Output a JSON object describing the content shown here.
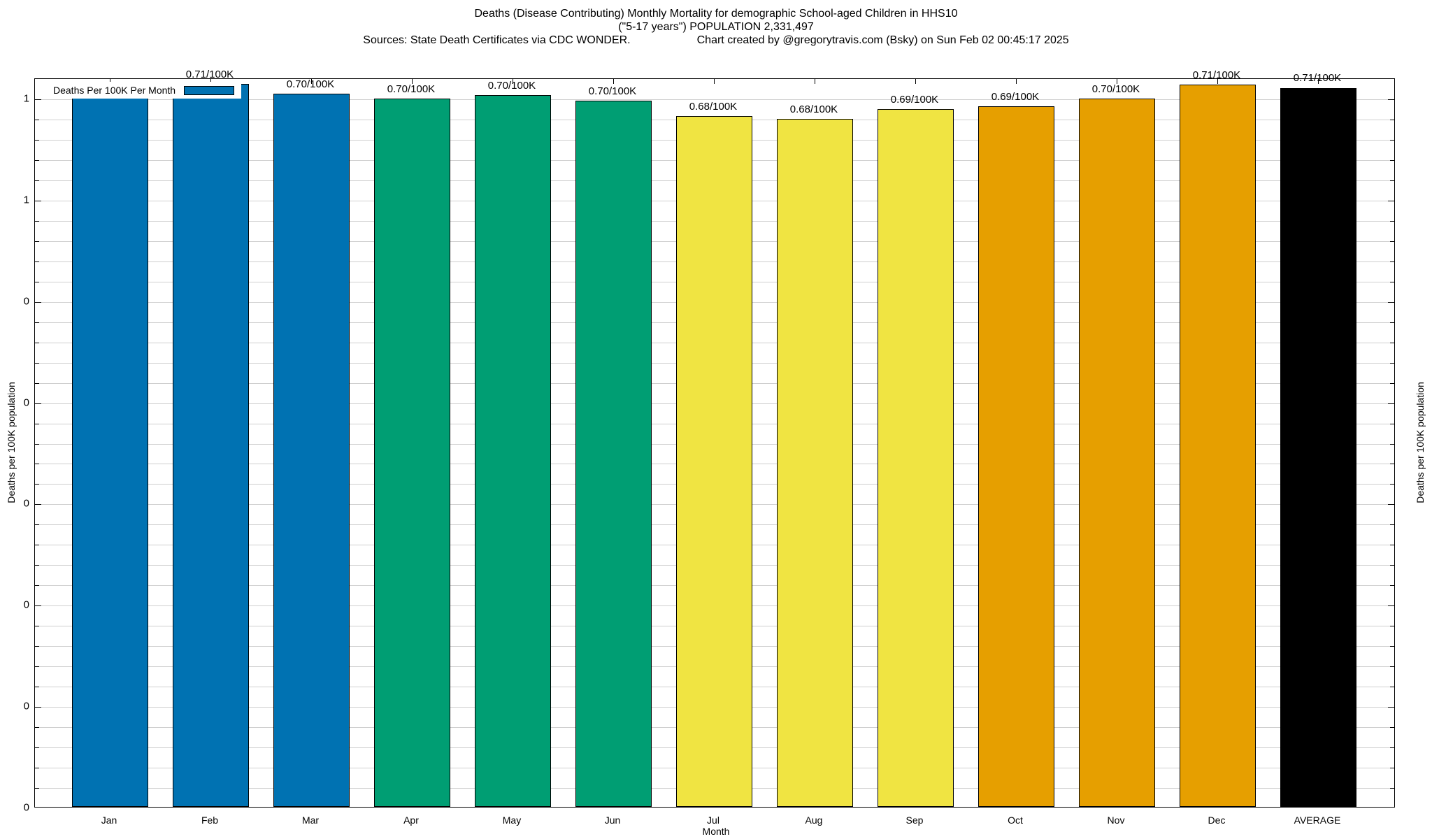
{
  "header": {
    "title": "Deaths (Disease Contributing) Monthly Mortality for demographic School-aged Children in HHS10",
    "subtitle": "(\"5-17 years\") POPULATION 2,331,497",
    "source_note": "Sources: State Death Certificates via CDC WONDER.",
    "credit_note": "Chart created by @gregorytravis.com (Bsky) on Sun Feb 02 00:45:17 2025"
  },
  "legend": {
    "label": "Deaths Per 100K Per Month",
    "swatch_color": "#0072B2",
    "position": "top-left"
  },
  "chart_data": {
    "type": "bar",
    "title": "Deaths (Disease Contributing) Monthly Mortality for demographic School-aged Children in HHS10",
    "subtitle": "(\"5-17 years\") POPULATION 2,331,497",
    "xlabel": "Month",
    "ylabel_left": "Deaths per 100K population",
    "ylabel_right": "Deaths per 100K population",
    "categories": [
      "Jan",
      "Feb",
      "Mar",
      "Apr",
      "May",
      "Jun",
      "Jul",
      "Aug",
      "Sep",
      "Oct",
      "Nov",
      "Dec",
      "AVERAGE"
    ],
    "values": [
      0.701,
      0.714,
      0.704,
      0.699,
      0.703,
      0.697,
      0.682,
      0.679,
      0.689,
      0.692,
      0.699,
      0.713,
      0.71
    ],
    "bar_labels": [
      "0.70/100K",
      "0.71/100K",
      "0.70/100K",
      "0.70/100K",
      "0.70/100K",
      "0.70/100K",
      "0.68/100K",
      "0.68/100K",
      "0.69/100K",
      "0.69/100K",
      "0.70/100K",
      "0.71/100K",
      "0.71/100K"
    ],
    "bar_colors": [
      "#0072B2",
      "#0072B2",
      "#0072B2",
      "#009E73",
      "#009E73",
      "#009E73",
      "#F0E442",
      "#F0E442",
      "#F0E442",
      "#E69F00",
      "#E69F00",
      "#E69F00",
      "#000000"
    ],
    "ylim": [
      0,
      0.72
    ],
    "y_major_ticks": [
      {
        "value": 0.7,
        "label": "1"
      },
      {
        "value": 0.6,
        "label": "1"
      },
      {
        "value": 0.5,
        "label": "0"
      },
      {
        "value": 0.4,
        "label": "0"
      },
      {
        "value": 0.3,
        "label": "0"
      },
      {
        "value": 0.2,
        "label": "0"
      },
      {
        "value": 0.1,
        "label": "0"
      },
      {
        "value": 0.0,
        "label": "0"
      }
    ],
    "y_minor_step": 0.02,
    "grid": "horizontal gridlines at every minor tick (0.02)",
    "gridline_color": "#cfcfcf",
    "legend_label": "Deaths Per 100K Per Month"
  }
}
